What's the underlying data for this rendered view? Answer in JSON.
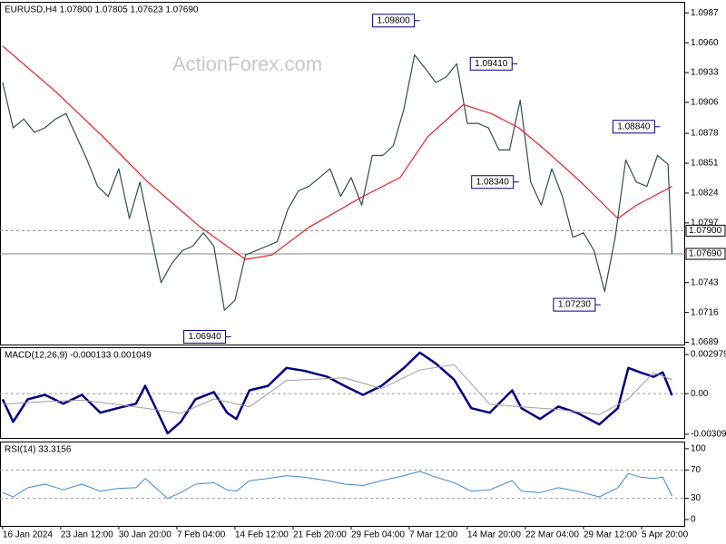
{
  "chart_data": [
    {
      "type": "line",
      "title": "EURUSD,H4 1.07800 1.07805 1.07623 1.07690",
      "watermark": "ActionForex.com",
      "xlim": [
        -2,
        517
      ],
      "ylim": [
        1.0687,
        1.0997
      ],
      "yticks": [
        1.0987,
        {
          "value": 1.096,
          "label": "1.0960"
        },
        1.0933,
        1.0906,
        1.0878,
        1.0851,
        1.0824,
        1.0797,
        1.0743,
        1.0716,
        1.0689
      ],
      "series": [
        {
          "color": "#2f4f4f",
          "x": [
            0,
            8,
            16,
            24,
            32,
            40,
            48,
            56,
            64,
            72,
            80,
            88,
            96,
            104,
            112,
            120,
            128,
            136,
            144,
            152,
            160,
            168,
            176,
            184,
            192,
            200,
            208,
            216,
            224,
            232,
            240,
            248,
            256,
            264,
            272,
            280,
            288,
            296,
            304,
            312,
            320,
            328,
            336,
            344,
            352,
            360,
            368,
            376,
            384,
            392,
            400,
            408,
            416,
            424,
            432,
            440,
            448,
            456,
            464,
            472,
            480,
            488,
            496,
            504,
            507
          ],
          "values": [
            1.0924,
            1.0883,
            1.0891,
            1.0879,
            1.0883,
            1.0891,
            1.0896,
            1.0875,
            1.0854,
            1.083,
            1.0821,
            1.0846,
            1.0801,
            1.0834,
            1.0788,
            1.0743,
            1.076,
            1.0772,
            1.0776,
            1.0788,
            1.0776,
            1.0718,
            1.0727,
            1.0768,
            1.0772,
            1.0776,
            1.078,
            1.0809,
            1.0826,
            1.083,
            1.0838,
            1.0846,
            1.0821,
            1.0838,
            1.0813,
            1.0858,
            1.0858,
            1.0867,
            1.09,
            1.0949,
            1.0937,
            1.0924,
            1.0929,
            1.0941,
            1.0887,
            1.0887,
            1.0883,
            1.0863,
            1.0863,
            1.0908,
            1.0834,
            1.0813,
            1.0846,
            1.0821,
            1.0784,
            1.0788,
            1.0772,
            1.0735,
            1.0784,
            1.0854,
            1.0834,
            1.083,
            1.0858,
            1.085,
            1.0769
          ]
        },
        {
          "color": "#e02020",
          "x": [
            0,
            40,
            76,
            110,
            150,
            184,
            204,
            232,
            273,
            301,
            322,
            349,
            370,
            391,
            411,
            438,
            466,
            480,
            507
          ],
          "values": [
            1.0957,
            1.0916,
            1.0875,
            1.0834,
            1.0793,
            1.0764,
            1.0768,
            1.0793,
            1.0821,
            1.0838,
            1.0875,
            1.0904,
            1.0896,
            1.0883,
            1.0863,
            1.0834,
            1.0801,
            1.0813,
            1.083
          ]
        }
      ],
      "annotations": [
        {
          "label": "1.09800",
          "value": 1.098,
          "x": 316
        },
        {
          "label": "1.09410",
          "value": 1.0941,
          "x": 390
        },
        {
          "label": "1.08840",
          "value": 1.0884,
          "x": 498
        },
        {
          "label": "1.08340",
          "value": 1.0834,
          "x": 391
        },
        {
          "label": "1.07230",
          "value": 1.0723,
          "x": 453
        },
        {
          "label": "1.06940",
          "value": 1.0694,
          "x": 173
        }
      ],
      "levels": [
        {
          "label": "1.07900",
          "value": 1.079,
          "style": "dashed"
        },
        {
          "label": "1.07690",
          "value": 1.0769,
          "style": "solid"
        }
      ]
    },
    {
      "type": "line",
      "title": "MACD(12,26,9) -0.000133 0.001049",
      "xlim": [
        -2,
        517
      ],
      "ylim": [
        -0.00337,
        0.00353
      ],
      "yticks": [
        0.002979,
        {
          "value": 0,
          "label": "0.00"
        },
        -0.003093
      ],
      "dashed_levels": [
        0
      ],
      "series": [
        {
          "color": "#000080",
          "width": 2.5,
          "x": [
            0,
            8,
            19,
            32,
            46,
            60,
            74,
            87,
            101,
            108,
            125,
            135,
            146,
            160,
            170,
            177,
            187,
            201,
            215,
            228,
            246,
            259,
            273,
            287,
            304,
            316,
            328,
            342,
            355,
            369,
            386,
            393,
            407,
            421,
            435,
            452,
            466,
            474,
            483,
            493,
            500,
            507
          ],
          "values": [
            -0.00043,
            -0.00214,
            -0.00043,
            -9e-05,
            -0.00077,
            -9e-05,
            -0.00145,
            -0.00111,
            -0.00077,
            0.00059,
            -0.00302,
            -0.00214,
            -0.00043,
            0.00012,
            -0.00145,
            -0.00193,
            0.00025,
            0.00059,
            0.00196,
            0.00175,
            0.00128,
            0.00059,
            -9e-05,
            0.00059,
            0.00196,
            0.00312,
            0.0023,
            0.00107,
            -0.00111,
            -0.00145,
            0.00025,
            -0.00111,
            -0.00193,
            -0.00098,
            -0.00145,
            -0.00234,
            -0.00111,
            0.00196,
            0.00162,
            0.00128,
            0.00162,
            -0.00013
          ]
        },
        {
          "color": "#a0a0a0",
          "width": 1,
          "x": [
            0,
            32,
            60,
            101,
            135,
            160,
            187,
            215,
            259,
            287,
            316,
            342,
            369,
            393,
            421,
            452,
            474,
            493,
            507
          ],
          "values": [
            -0.0008,
            -0.0006,
            -0.0005,
            -0.001,
            -0.0015,
            -0.0004,
            -0.001,
            0.001,
            0.0012,
            0.0004,
            0.0018,
            0.0022,
            -0.0008,
            -0.001,
            -0.0012,
            -0.0016,
            -0.0004,
            0.0016,
            0.00105
          ]
        }
      ]
    },
    {
      "type": "line",
      "title": "RSI(14) 33.3156",
      "xlim": [
        -2,
        517
      ],
      "ylim": [
        -8.9,
        110.1
      ],
      "yticks": [
        100,
        70,
        30,
        0
      ],
      "dashed_levels": [
        70,
        30
      ],
      "xticks": [
        {
          "value": 0,
          "label": "16 Jan 2024"
        },
        {
          "value": 44,
          "label": "23 Jan 12:00"
        },
        {
          "value": 88,
          "label": "30 Jan 20:00"
        },
        {
          "value": 132,
          "label": "7 Feb 04:00"
        },
        {
          "value": 176,
          "label": "14 Feb 12:00"
        },
        {
          "value": 220,
          "label": "21 Feb 20:00"
        },
        {
          "value": 264,
          "label": "29 Feb 04:00"
        },
        {
          "value": 308,
          "label": "7 Mar 12:00"
        },
        {
          "value": 352,
          "label": "14 Mar 20:00"
        },
        {
          "value": 396,
          "label": "22 Mar 04:00"
        },
        {
          "value": 440,
          "label": "29 Mar 12:00"
        },
        {
          "value": 484,
          "label": "5 Apr 20:00"
        }
      ],
      "series": [
        {
          "color": "#3a8ad6",
          "width": 1,
          "x": [
            0,
            8,
            19,
            32,
            46,
            60,
            74,
            87,
            101,
            108,
            125,
            135,
            146,
            160,
            170,
            177,
            187,
            201,
            215,
            228,
            246,
            259,
            273,
            287,
            304,
            316,
            328,
            342,
            355,
            369,
            386,
            393,
            407,
            421,
            435,
            452,
            466,
            474,
            483,
            493,
            500,
            507
          ],
          "values": [
            38,
            32,
            45,
            50,
            42,
            50,
            40,
            44,
            45,
            58,
            30,
            38,
            50,
            52,
            42,
            40,
            55,
            58,
            62,
            60,
            55,
            50,
            48,
            55,
            62,
            68,
            60,
            52,
            40,
            42,
            55,
            40,
            38,
            45,
            40,
            32,
            45,
            65,
            60,
            58,
            60,
            33.3
          ]
        }
      ]
    }
  ]
}
